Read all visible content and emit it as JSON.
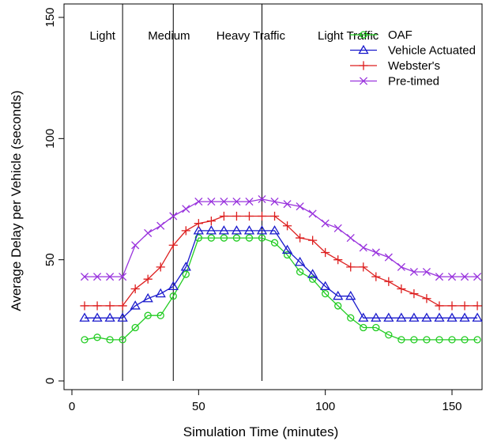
{
  "chart_data": {
    "type": "line",
    "title": "",
    "xlabel": "Simulation Time (minutes)",
    "ylabel": "Average Delay per Vehicle (seconds)",
    "xlim": [
      0,
      163
    ],
    "ylim": [
      0,
      150
    ],
    "xticks": [
      0,
      50,
      100,
      150
    ],
    "yticks": [
      0,
      50,
      100,
      150
    ],
    "grid": false,
    "legend_position": "top-right",
    "phase_boundaries": [
      20,
      40,
      75
    ],
    "phase_labels": [
      {
        "text": "Light",
        "x": 7
      },
      {
        "text": "Medium",
        "x": 30
      },
      {
        "text": "Heavy Traffic",
        "x": 57
      },
      {
        "text": "Light Traffic",
        "x": 97
      }
    ],
    "x": [
      5,
      10,
      15,
      20,
      25,
      30,
      35,
      40,
      45,
      50,
      55,
      60,
      65,
      70,
      75,
      80,
      85,
      90,
      95,
      100,
      105,
      110,
      115,
      120,
      125,
      130,
      135,
      140,
      145,
      150,
      155,
      160
    ],
    "series": [
      {
        "name": "OAF",
        "color": "#22cc22",
        "marker": "circle",
        "values": [
          17,
          18,
          17,
          17,
          22,
          27,
          27,
          35,
          44,
          59,
          59,
          59,
          59,
          59,
          59,
          57,
          52,
          45,
          42,
          36,
          31,
          26,
          22,
          22,
          19,
          17,
          17,
          17,
          17,
          17,
          17,
          17
        ]
      },
      {
        "name": "Vehicle Actuated",
        "color": "#1a1acc",
        "marker": "triangle",
        "values": [
          26,
          26,
          26,
          26,
          31,
          34,
          36,
          39,
          47,
          62,
          62,
          62,
          62,
          62,
          62,
          62,
          54,
          49,
          44,
          39,
          35,
          35,
          26,
          26,
          26,
          26,
          26,
          26,
          26,
          26,
          26,
          26
        ]
      },
      {
        "name": "Webster's",
        "color": "#dd1e1e",
        "marker": "plus",
        "values": [
          31,
          31,
          31,
          31,
          38,
          42,
          47,
          56,
          62,
          65,
          66,
          68,
          68,
          68,
          68,
          68,
          64,
          59,
          58,
          53,
          50,
          47,
          47,
          43,
          41,
          38,
          36,
          34,
          31,
          31,
          31,
          31
        ]
      },
      {
        "name": "Pre-timed",
        "color": "#9933dd",
        "marker": "cross",
        "values": [
          43,
          43,
          43,
          43,
          56,
          61,
          64,
          68,
          71,
          74,
          74,
          74,
          74,
          74,
          75,
          74,
          73,
          72,
          69,
          65,
          63,
          59,
          55,
          53,
          51,
          47,
          45,
          45,
          43,
          43,
          43,
          43
        ]
      }
    ]
  }
}
